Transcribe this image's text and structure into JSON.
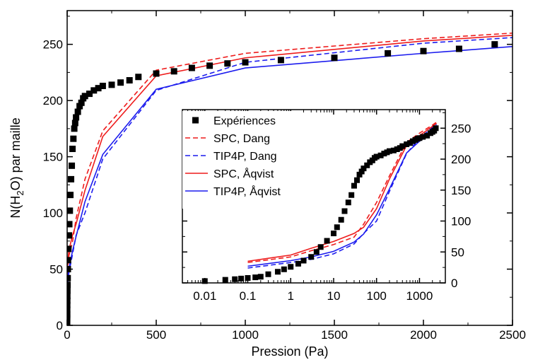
{
  "chart_data": [
    {
      "type": "line",
      "xlabel": "Pression (Pa)",
      "ylabel_parts": [
        "N(H",
        "2",
        "O) par maille"
      ],
      "xlim": [
        0,
        2500
      ],
      "ylim": [
        0,
        280
      ],
      "xticks": [
        "0",
        "500",
        "1000",
        "1500",
        "2000",
        "2500"
      ],
      "xtick_values": [
        0,
        500,
        1000,
        1500,
        2000,
        2500
      ],
      "yticks": [
        "0",
        "50",
        "100",
        "150",
        "200",
        "250"
      ],
      "ytick_values": [
        0,
        50,
        100,
        150,
        200,
        250
      ],
      "grid": false,
      "series": [
        {
          "name": "Expériences",
          "style": "square-markers",
          "color": "#000000",
          "x": [
            0.01,
            0.03,
            0.05,
            0.07,
            0.1,
            0.15,
            0.2,
            0.3,
            0.5,
            0.7,
            1,
            1.5,
            2,
            3,
            4,
            5,
            7,
            10,
            12,
            15,
            18,
            22,
            26,
            30,
            35,
            40,
            45,
            50,
            60,
            70,
            80,
            90,
            100,
            125,
            150,
            175,
            200,
            250,
            300,
            350,
            400,
            500,
            600,
            700,
            800,
            900,
            1000,
            1200,
            1500,
            1800,
            2000,
            2200,
            2400
          ],
          "y": [
            3,
            5,
            6,
            7,
            8,
            9,
            10,
            14,
            18,
            22,
            26,
            31,
            36,
            42,
            50,
            58,
            68,
            80,
            90,
            102,
            116,
            130,
            142,
            157,
            166,
            175,
            180,
            185,
            190,
            195,
            198,
            202,
            204,
            206,
            209,
            211,
            213,
            214,
            216,
            218,
            221,
            224,
            226,
            229,
            231,
            233,
            234,
            236,
            238,
            242,
            244,
            246,
            250
          ]
        },
        {
          "name": "SPC, Dang",
          "style": "dashed",
          "color": "#ee1c1c",
          "x": [
            0.1,
            1,
            3,
            10,
            30,
            50,
            100,
            200,
            500,
            1000,
            2000,
            2500
          ],
          "y": [
            33,
            42,
            52,
            62,
            74,
            95,
            130,
            173,
            227,
            242,
            255,
            260
          ]
        },
        {
          "name": "TIP4P, Dang",
          "style": "dashed",
          "color": "#1c1cee",
          "x": [
            0.1,
            1,
            3,
            10,
            30,
            50,
            100,
            200,
            500,
            1000,
            2000,
            2500
          ],
          "y": [
            24,
            33,
            38,
            47,
            63,
            80,
            100,
            148,
            209,
            234,
            251,
            256
          ]
        },
        {
          "name": "SPC, Åqvist",
          "style": "solid",
          "color": "#ee1c1c",
          "x": [
            0.1,
            1,
            3,
            10,
            30,
            50,
            100,
            200,
            500,
            1000,
            2000,
            2500
          ],
          "y": [
            35,
            45,
            56,
            67,
            80,
            90,
            120,
            168,
            222,
            238,
            253,
            258
          ]
        },
        {
          "name": "TIP4P, Åqvist",
          "style": "solid",
          "color": "#1c1cee",
          "x": [
            0.1,
            1,
            3,
            10,
            30,
            50,
            100,
            200,
            500,
            1000,
            2000,
            2500
          ],
          "y": [
            27,
            36,
            42,
            51,
            66,
            79,
            110,
            152,
            210,
            229,
            242,
            248
          ]
        }
      ]
    },
    {
      "type": "line",
      "role": "inset",
      "xscale": "log",
      "xlim": [
        0.003,
        4000
      ],
      "ylim": [
        0,
        280
      ],
      "xticks": [
        "0.01",
        "0.1",
        "1",
        "10",
        "100",
        "1000"
      ],
      "xtick_values": [
        0.01,
        0.1,
        1,
        10,
        100,
        1000
      ],
      "yticks": [
        "0",
        "50",
        "100",
        "150",
        "200",
        "250"
      ],
      "ytick_values": [
        0,
        50,
        100,
        150,
        200,
        250
      ],
      "grid": false,
      "legend_placement": "left"
    }
  ]
}
